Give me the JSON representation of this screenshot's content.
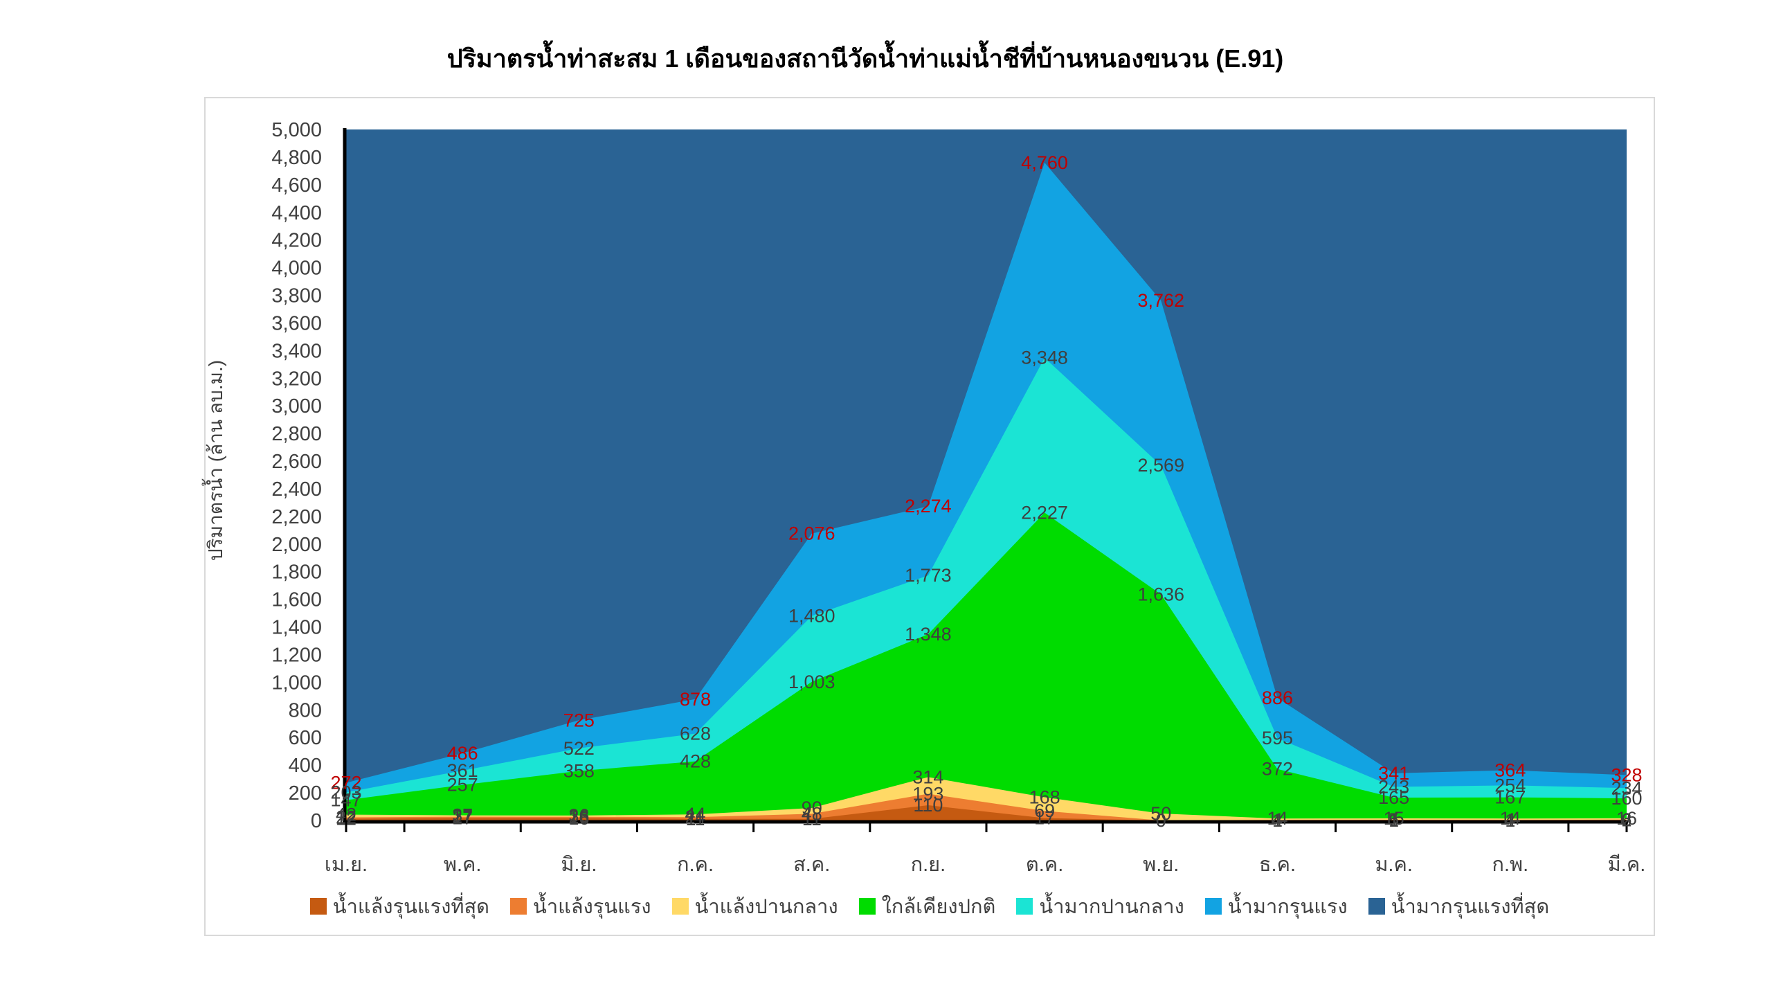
{
  "title": "ปริมาตรน้ำท่าสะสม 1 เดือนของสถานีวัดน้ำท่าแม่น้ำชีที่บ้านหนองขนวน (E.91)",
  "y_axis": {
    "title": "ปริมาตรน้ำ (ล้าน ลบ.ม.)",
    "min": 0,
    "max": 5000,
    "step": 200
  },
  "legend": [
    {
      "label": "น้ำแล้งรุนแรงที่สุด",
      "color": "#C55A11"
    },
    {
      "label": "น้ำแล้งรุนแรง",
      "color": "#ED7D31"
    },
    {
      "label": "น้ำแล้งปานกลาง",
      "color": "#FFD966"
    },
    {
      "label": "ใกล้เคียงปกติ",
      "color": "#00DC00"
    },
    {
      "label": "น้ำมากปานกลาง",
      "color": "#1BE4D4"
    },
    {
      "label": "น้ำมากรุนแรง",
      "color": "#12A3E2"
    },
    {
      "label": "น้ำมากรุนแรงที่สุด",
      "color": "#2A6394"
    }
  ],
  "chart_data": {
    "type": "area",
    "title": "ปริมาตรน้ำท่าสะสม 1 เดือนของสถานีวัดน้ำท่าแม่น้ำชีที่บ้านหนองขนวน (E.91)",
    "xlabel": "",
    "ylabel": "ปริมาตรน้ำ (ล้าน ลบ.ม.)",
    "ylim": [
      0,
      5000
    ],
    "grid": false,
    "legend_position": "bottom",
    "categories": [
      "เม.ย.",
      "พ.ค.",
      "มิ.ย.",
      "ก.ค.",
      "ส.ค.",
      "ก.ย.",
      "ต.ค.",
      "พ.ย.",
      "ธ.ค.",
      "ม.ค.",
      "ก.พ.",
      "มี.ค."
    ],
    "top_band": {
      "name": "น้ำมากรุนแรงที่สุด",
      "color": "#2A6394",
      "note": "fills plot to y-max above the น้ำมากรุนแรง boundary"
    },
    "series": [
      {
        "name": "น้ำมากรุนแรง",
        "color": "#12A3E2",
        "label_color": "#C00000",
        "values": [
          272,
          486,
          725,
          878,
          2076,
          2274,
          4760,
          3762,
          886,
          341,
          364,
          328
        ]
      },
      {
        "name": "น้ำมากปานกลาง",
        "color": "#1BE4D4",
        "label_color": "#3F3F3F",
        "values": [
          203,
          361,
          522,
          628,
          1480,
          1773,
          3348,
          2569,
          595,
          243,
          254,
          234
        ]
      },
      {
        "name": "ใกล้เคียงปกติ",
        "color": "#00DC00",
        "label_color": "#3F3F3F",
        "values": [
          147,
          257,
          358,
          428,
          1003,
          1348,
          2227,
          1636,
          372,
          165,
          167,
          160
        ]
      },
      {
        "name": "น้ำแล้งปานกลาง",
        "color": "#FFD966",
        "label_color": "#3F3F3F",
        "values": [
          42,
          37,
          36,
          44,
          90,
          314,
          168,
          50,
          14,
          15,
          14,
          16
        ]
      },
      {
        "name": "น้ำแล้งรุนแรง",
        "color": "#ED7D31",
        "label_color": "#3F3F3F",
        "values": [
          22,
          27,
          26,
          24,
          48,
          193,
          69,
          0,
          4,
          5,
          4,
          6
        ]
      },
      {
        "name": "น้ำแล้งรุนแรงที่สุด",
        "color": "#C55A11",
        "label_color": "#3F3F3F",
        "values": [
          12,
          17,
          16,
          11,
          11,
          110,
          17,
          0,
          1,
          1,
          1,
          2
        ]
      }
    ]
  }
}
